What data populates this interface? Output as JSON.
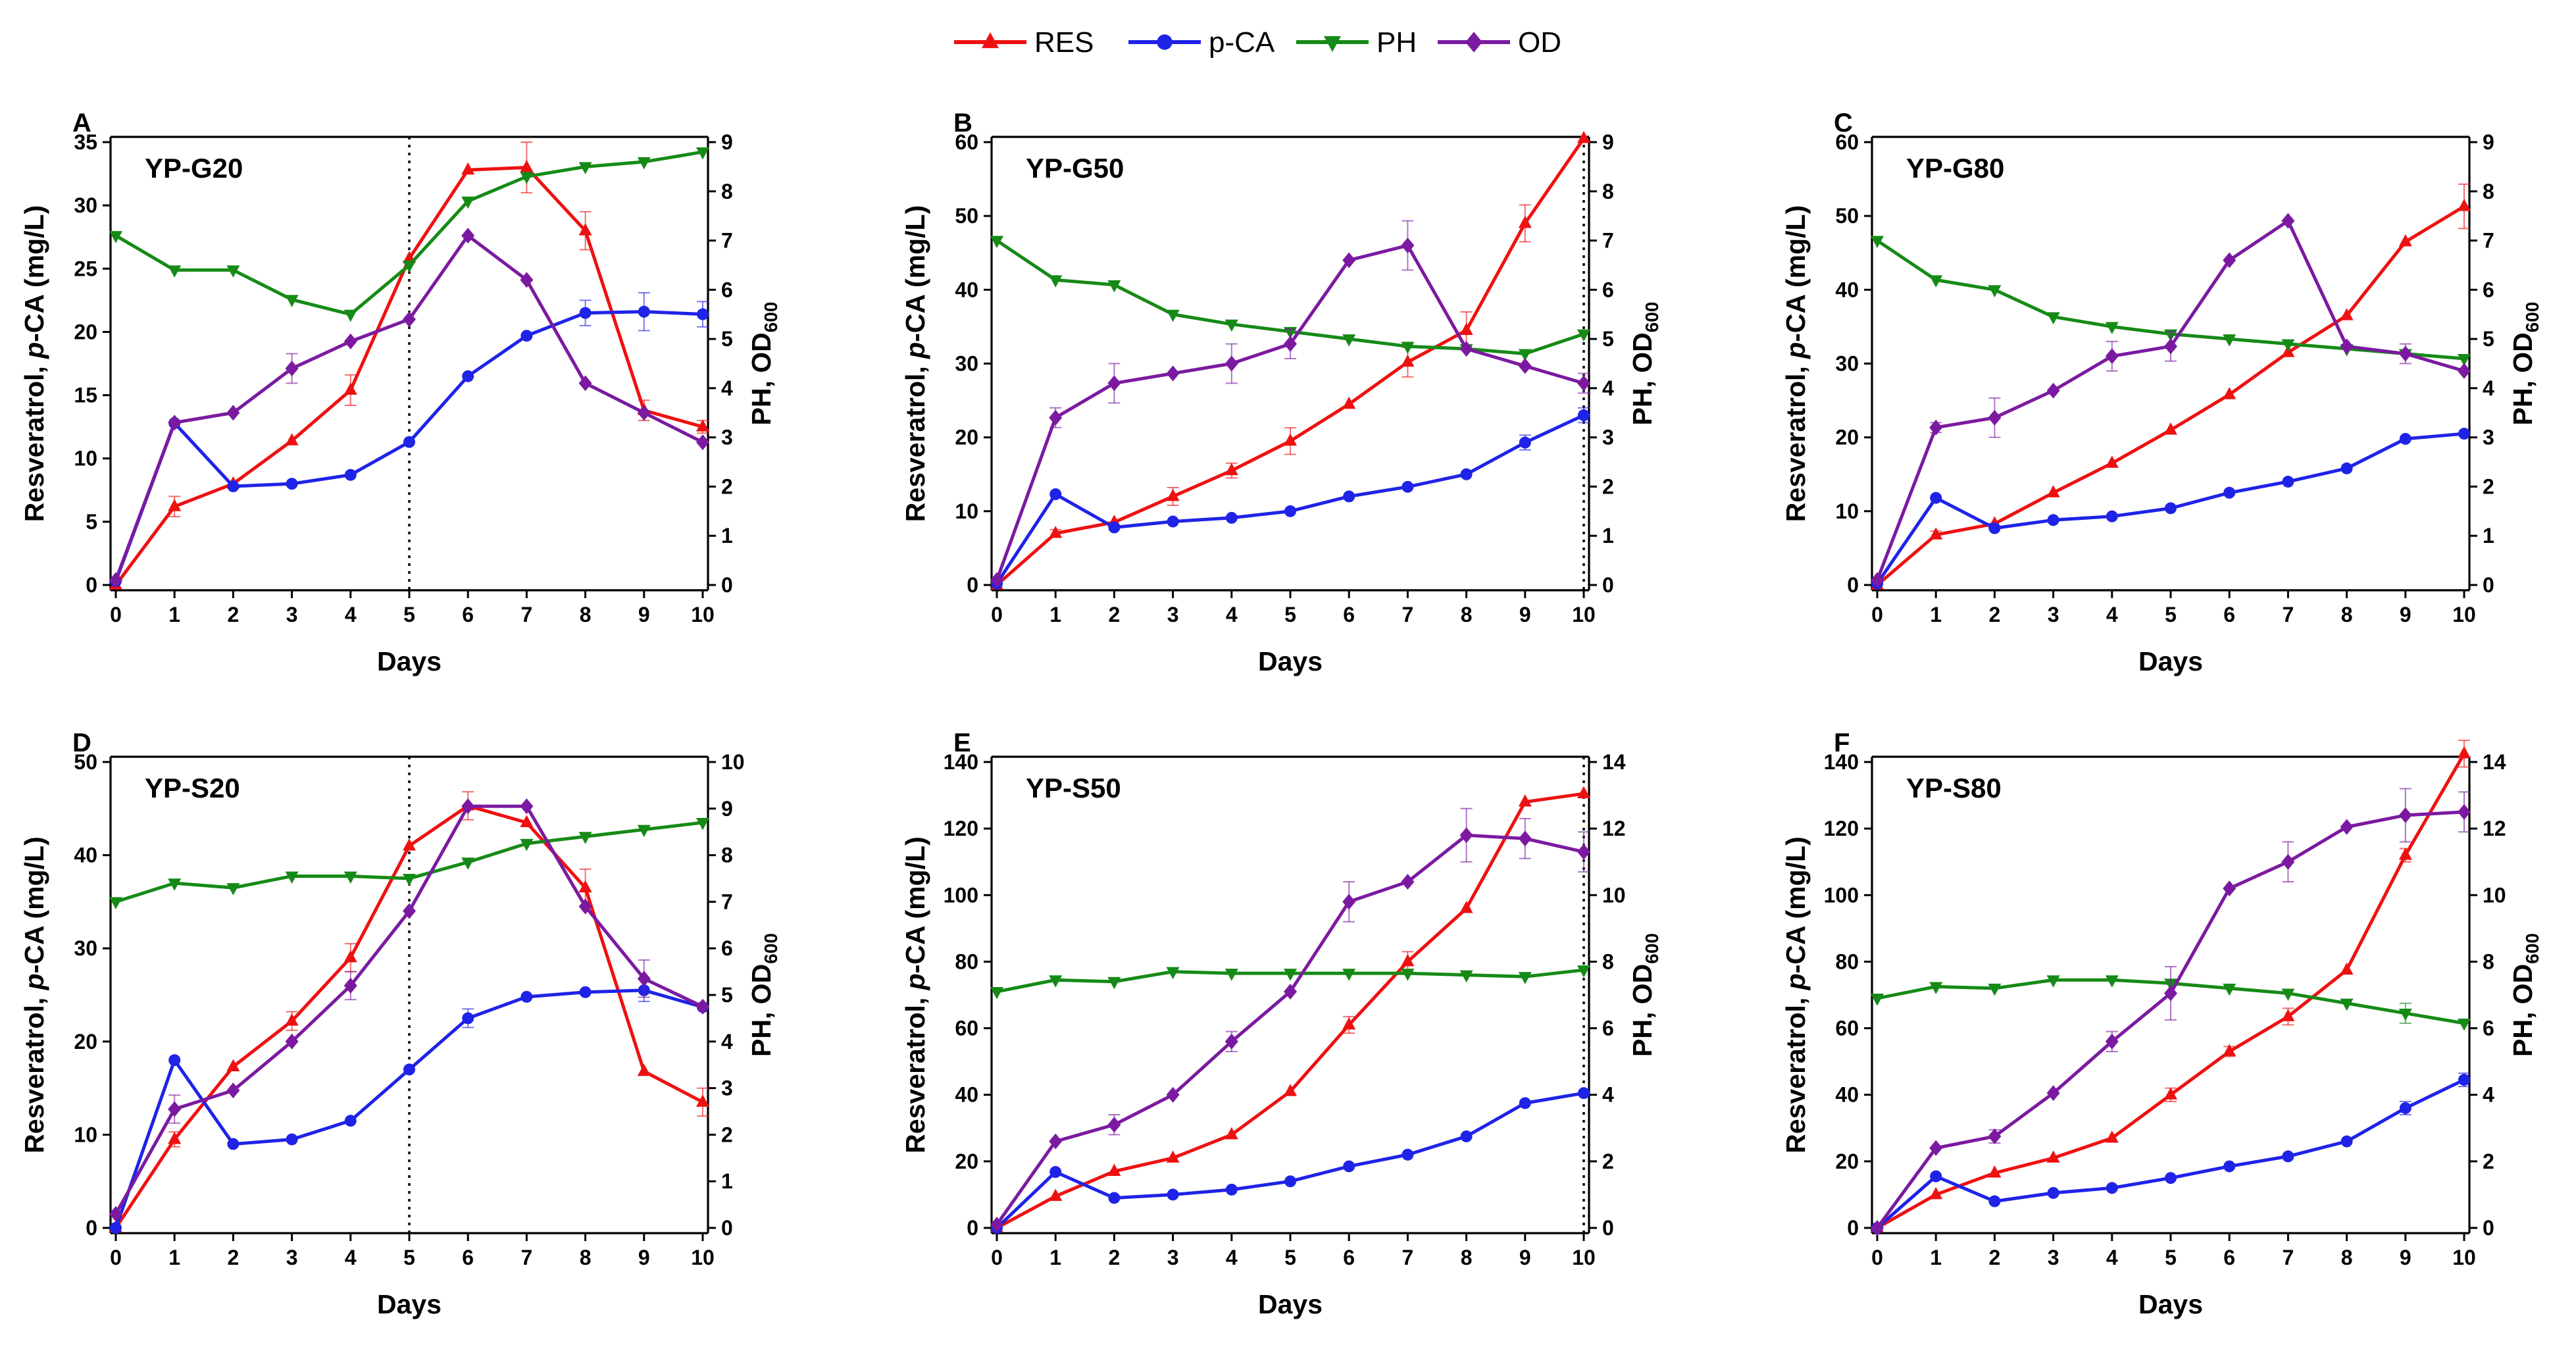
{
  "colors": {
    "RES": "#ee1111",
    "pCA": "#1f23e6",
    "PH": "#168a17",
    "OD": "#7b1aa0"
  },
  "legend": [
    {
      "key": "RES",
      "label": "RES",
      "marker": "triangle-up"
    },
    {
      "key": "pCA",
      "label": "p-CA",
      "marker": "circle"
    },
    {
      "key": "PH",
      "label": "PH",
      "marker": "triangle-down"
    },
    {
      "key": "OD",
      "label": "OD",
      "marker": "diamond"
    }
  ],
  "labels": {
    "xlabel": "Days",
    "ylabel_left_pre": "Resveratrol, ",
    "ylabel_left_italic": "p",
    "ylabel_left_post": "-CA (mg/L)",
    "ylabel_right_main": "PH, OD",
    "ylabel_right_sub": "600"
  },
  "chart_data": [
    {
      "panel": "A",
      "title": "YP-G20",
      "type": "line",
      "x": [
        0,
        1,
        2,
        3,
        4,
        5,
        6,
        7,
        8,
        9,
        10
      ],
      "ylim_left": [
        0,
        35
      ],
      "yticks_left": [
        0,
        5,
        10,
        15,
        20,
        25,
        30,
        35
      ],
      "ylim_right": [
        0,
        9
      ],
      "yticks_right": [
        0,
        1,
        2,
        3,
        4,
        5,
        6,
        7,
        8,
        9
      ],
      "marker_line_day": 5,
      "series": [
        {
          "key": "RES",
          "name": "RES",
          "axis": "left",
          "values": [
            0,
            6.2,
            8,
            11.4,
            15.4,
            25.8,
            32.8,
            33,
            28,
            13.8,
            12.5
          ],
          "errors": [
            0,
            0.8,
            0,
            0,
            1.2,
            0,
            0,
            2,
            1.5,
            0.8,
            0.5
          ]
        },
        {
          "key": "pCA",
          "name": "p-CA",
          "axis": "left",
          "values": [
            0.3,
            12.8,
            7.8,
            8,
            8.7,
            11.3,
            16.5,
            19.7,
            21.5,
            21.6,
            21.4
          ],
          "errors": [
            0,
            0,
            0,
            0,
            0,
            0,
            0,
            0,
            1,
            1.5,
            1
          ]
        },
        {
          "key": "PH",
          "name": "PH",
          "axis": "right",
          "values": [
            7.1,
            6.4,
            6.4,
            5.8,
            5.5,
            6.5,
            7.8,
            8.3,
            8.5,
            8.6,
            8.8
          ],
          "errors": [
            0,
            0,
            0,
            0,
            0,
            0,
            0,
            0,
            0,
            0,
            0
          ]
        },
        {
          "key": "OD",
          "name": "OD",
          "axis": "right",
          "values": [
            0.1,
            3.3,
            3.5,
            4.4,
            4.95,
            5.4,
            7.1,
            6.2,
            4.1,
            3.5,
            2.9
          ],
          "errors": [
            0,
            0,
            0,
            0.3,
            0,
            0,
            0,
            0,
            0,
            0,
            0
          ]
        }
      ]
    },
    {
      "panel": "B",
      "title": "YP-G50",
      "type": "line",
      "x": [
        0,
        1,
        2,
        3,
        4,
        5,
        6,
        7,
        8,
        9,
        10
      ],
      "ylim_left": [
        0,
        60
      ],
      "yticks_left": [
        0,
        10,
        20,
        30,
        40,
        50,
        60
      ],
      "ylim_right": [
        0,
        9
      ],
      "yticks_right": [
        0,
        1,
        2,
        3,
        4,
        5,
        6,
        7,
        8,
        9
      ],
      "marker_line_day": 10,
      "series": [
        {
          "key": "RES",
          "name": "RES",
          "axis": "left",
          "values": [
            0,
            7,
            8.5,
            12,
            15.5,
            19.5,
            24.5,
            30.2,
            34.5,
            49,
            60.5
          ],
          "errors": [
            0,
            0.5,
            0,
            1.2,
            1,
            1.8,
            0,
            2,
            2.5,
            2.5,
            0
          ]
        },
        {
          "key": "pCA",
          "name": "p-CA",
          "axis": "left",
          "values": [
            0.2,
            12.3,
            7.8,
            8.6,
            9.1,
            10,
            12,
            13.3,
            15,
            19.3,
            23
          ],
          "errors": [
            0,
            0,
            0,
            0,
            0,
            0,
            0,
            0,
            0,
            1,
            1
          ]
        },
        {
          "key": "PH",
          "name": "PH",
          "axis": "right",
          "values": [
            7,
            6.2,
            6.1,
            5.5,
            5.3,
            5.15,
            5,
            4.85,
            4.8,
            4.7,
            5.1
          ],
          "errors": [
            0,
            0,
            0,
            0,
            0,
            0,
            0,
            0,
            0,
            0,
            0
          ]
        },
        {
          "key": "OD",
          "name": "OD",
          "axis": "right",
          "values": [
            0.1,
            3.4,
            4.1,
            4.3,
            4.5,
            4.9,
            6.6,
            6.9,
            4.8,
            4.45,
            4.1
          ],
          "errors": [
            0,
            0.2,
            0.4,
            0,
            0.4,
            0.3,
            0,
            0.5,
            0,
            0,
            0.2
          ]
        }
      ]
    },
    {
      "panel": "C",
      "title": "YP-G80",
      "type": "line",
      "x": [
        0,
        1,
        2,
        3,
        4,
        5,
        6,
        7,
        8,
        9,
        10
      ],
      "ylim_left": [
        0,
        60
      ],
      "yticks_left": [
        0,
        10,
        20,
        30,
        40,
        50,
        60
      ],
      "ylim_right": [
        0,
        9
      ],
      "yticks_right": [
        0,
        1,
        2,
        3,
        4,
        5,
        6,
        7,
        8,
        9
      ],
      "marker_line_day": null,
      "series": [
        {
          "key": "RES",
          "name": "RES",
          "axis": "left",
          "values": [
            0,
            6.8,
            8.3,
            12.5,
            16.5,
            21,
            25.8,
            31.5,
            36.5,
            46.5,
            51.3
          ],
          "errors": [
            0,
            0.5,
            0,
            0,
            0,
            0,
            0,
            0,
            0,
            0,
            3
          ]
        },
        {
          "key": "pCA",
          "name": "p-CA",
          "axis": "left",
          "values": [
            0.2,
            11.8,
            7.7,
            8.8,
            9.3,
            10.4,
            12.5,
            14,
            15.8,
            19.8,
            20.5
          ],
          "errors": [
            0,
            0,
            0,
            0,
            0,
            0,
            0,
            0,
            0,
            0,
            0
          ]
        },
        {
          "key": "PH",
          "name": "PH",
          "axis": "right",
          "values": [
            7,
            6.2,
            6,
            5.45,
            5.25,
            5.1,
            5,
            4.9,
            4.8,
            4.7,
            4.6
          ],
          "errors": [
            0,
            0,
            0,
            0,
            0,
            0,
            0,
            0,
            0,
            0,
            0
          ]
        },
        {
          "key": "OD",
          "name": "OD",
          "axis": "right",
          "values": [
            0.1,
            3.2,
            3.4,
            3.95,
            4.65,
            4.85,
            6.6,
            7.4,
            4.85,
            4.7,
            4.35
          ],
          "errors": [
            0,
            0.1,
            0.4,
            0,
            0.3,
            0.3,
            0,
            0,
            0,
            0.2,
            0
          ]
        }
      ]
    },
    {
      "panel": "D",
      "title": "YP-S20",
      "type": "line",
      "x": [
        0,
        1,
        2,
        3,
        4,
        5,
        6,
        7,
        8,
        9,
        10
      ],
      "ylim_left": [
        0,
        50
      ],
      "yticks_left": [
        0,
        10,
        20,
        30,
        40,
        50
      ],
      "ylim_right": [
        0,
        10
      ],
      "yticks_right": [
        0,
        1,
        2,
        3,
        4,
        5,
        6,
        7,
        8,
        9,
        10
      ],
      "marker_line_day": 5,
      "series": [
        {
          "key": "RES",
          "name": "RES",
          "axis": "left",
          "values": [
            0,
            9.5,
            17.3,
            22.2,
            29,
            41,
            45.3,
            43.5,
            36.5,
            16.8,
            13.5
          ],
          "errors": [
            0,
            0.8,
            0,
            1,
            1.5,
            0,
            1.5,
            0,
            2,
            0,
            1.5
          ]
        },
        {
          "key": "pCA",
          "name": "p-CA",
          "axis": "left",
          "values": [
            0,
            18,
            9,
            9.5,
            11.5,
            17,
            22.5,
            24.8,
            25.3,
            25.5,
            23.7
          ],
          "errors": [
            0,
            0,
            0,
            0,
            0,
            0,
            1,
            0,
            0,
            1.2,
            0
          ]
        },
        {
          "key": "PH",
          "name": "PH",
          "axis": "right",
          "values": [
            7,
            7.4,
            7.3,
            7.55,
            7.55,
            7.5,
            7.85,
            8.25,
            8.4,
            8.55,
            8.7
          ],
          "errors": [
            0,
            0,
            0,
            0,
            0,
            0,
            0,
            0,
            0,
            0,
            0
          ]
        },
        {
          "key": "OD",
          "name": "OD",
          "axis": "right",
          "values": [
            0.3,
            2.55,
            2.95,
            4,
            5.2,
            6.8,
            9.05,
            9.05,
            6.9,
            5.35,
            4.75
          ],
          "errors": [
            0,
            0.3,
            0,
            0,
            0.3,
            0,
            0,
            0,
            0,
            0.4,
            0
          ]
        }
      ]
    },
    {
      "panel": "E",
      "title": "YP-S50",
      "type": "line",
      "x": [
        0,
        1,
        2,
        3,
        4,
        5,
        6,
        7,
        8,
        9,
        10
      ],
      "ylim_left": [
        0,
        140
      ],
      "yticks_left": [
        0,
        20,
        40,
        60,
        80,
        100,
        120,
        140
      ],
      "ylim_right": [
        0,
        14
      ],
      "yticks_right": [
        0,
        2,
        4,
        6,
        8,
        10,
        12,
        14
      ],
      "marker_line_day": 10,
      "series": [
        {
          "key": "RES",
          "name": "RES",
          "axis": "left",
          "values": [
            0,
            9.5,
            17,
            21,
            28,
            41,
            61,
            80,
            96,
            128,
            130.5
          ],
          "errors": [
            0,
            0,
            0,
            0,
            0,
            0,
            2.5,
            3,
            0,
            0,
            0
          ]
        },
        {
          "key": "pCA",
          "name": "p-CA",
          "axis": "left",
          "values": [
            0,
            16.8,
            9,
            10,
            11.5,
            14,
            18.5,
            22,
            27.5,
            37.5,
            40.5
          ],
          "errors": [
            0,
            0,
            0,
            0,
            0,
            0,
            0,
            0,
            0,
            0,
            0
          ]
        },
        {
          "key": "PH",
          "name": "PH",
          "axis": "right",
          "values": [
            7.1,
            7.45,
            7.4,
            7.7,
            7.65,
            7.65,
            7.65,
            7.65,
            7.6,
            7.55,
            7.75
          ],
          "errors": [
            0,
            0,
            0,
            0,
            0,
            0,
            0,
            0,
            0,
            0,
            0
          ]
        },
        {
          "key": "OD",
          "name": "OD",
          "axis": "right",
          "values": [
            0.1,
            2.6,
            3.1,
            4,
            5.6,
            7.1,
            9.8,
            10.4,
            11.8,
            11.7,
            11.3
          ],
          "errors": [
            0,
            0,
            0.3,
            0,
            0.3,
            0,
            0.6,
            0,
            0.8,
            0.6,
            0.6
          ]
        }
      ]
    },
    {
      "panel": "F",
      "title": "YP-S80",
      "type": "line",
      "x": [
        0,
        1,
        2,
        3,
        4,
        5,
        6,
        7,
        8,
        9,
        10
      ],
      "ylim_left": [
        0,
        140
      ],
      "yticks_left": [
        0,
        20,
        40,
        60,
        80,
        100,
        120,
        140
      ],
      "ylim_right": [
        0,
        14
      ],
      "yticks_right": [
        0,
        2,
        4,
        6,
        8,
        10,
        12,
        14
      ],
      "marker_line_day": null,
      "series": [
        {
          "key": "RES",
          "name": "RES",
          "axis": "left",
          "values": [
            0,
            10,
            16.5,
            21,
            27,
            40,
            53,
            63.5,
            77.5,
            112,
            142.5
          ],
          "errors": [
            0,
            0,
            0,
            0,
            0,
            2,
            1.5,
            2.5,
            0,
            2,
            4
          ]
        },
        {
          "key": "pCA",
          "name": "p-CA",
          "axis": "left",
          "values": [
            0,
            15.5,
            8,
            10.5,
            12,
            15,
            18.5,
            21.5,
            26,
            36,
            44.5
          ],
          "errors": [
            0,
            0,
            0,
            0,
            0,
            0,
            0,
            0,
            0,
            2,
            2
          ]
        },
        {
          "key": "PH",
          "name": "PH",
          "axis": "right",
          "values": [
            6.9,
            7.25,
            7.2,
            7.45,
            7.45,
            7.35,
            7.2,
            7.05,
            6.75,
            6.45,
            6.15
          ],
          "errors": [
            0,
            0,
            0,
            0,
            0,
            0,
            0,
            0,
            0,
            0.3,
            0
          ]
        },
        {
          "key": "OD",
          "name": "OD",
          "axis": "right",
          "values": [
            0,
            2.4,
            2.75,
            4.05,
            5.6,
            7.05,
            10.2,
            11,
            12.05,
            12.4,
            12.5
          ],
          "errors": [
            0,
            0,
            0.2,
            0,
            0.3,
            0.8,
            0,
            0.6,
            0,
            0.8,
            0.6
          ]
        }
      ]
    }
  ]
}
